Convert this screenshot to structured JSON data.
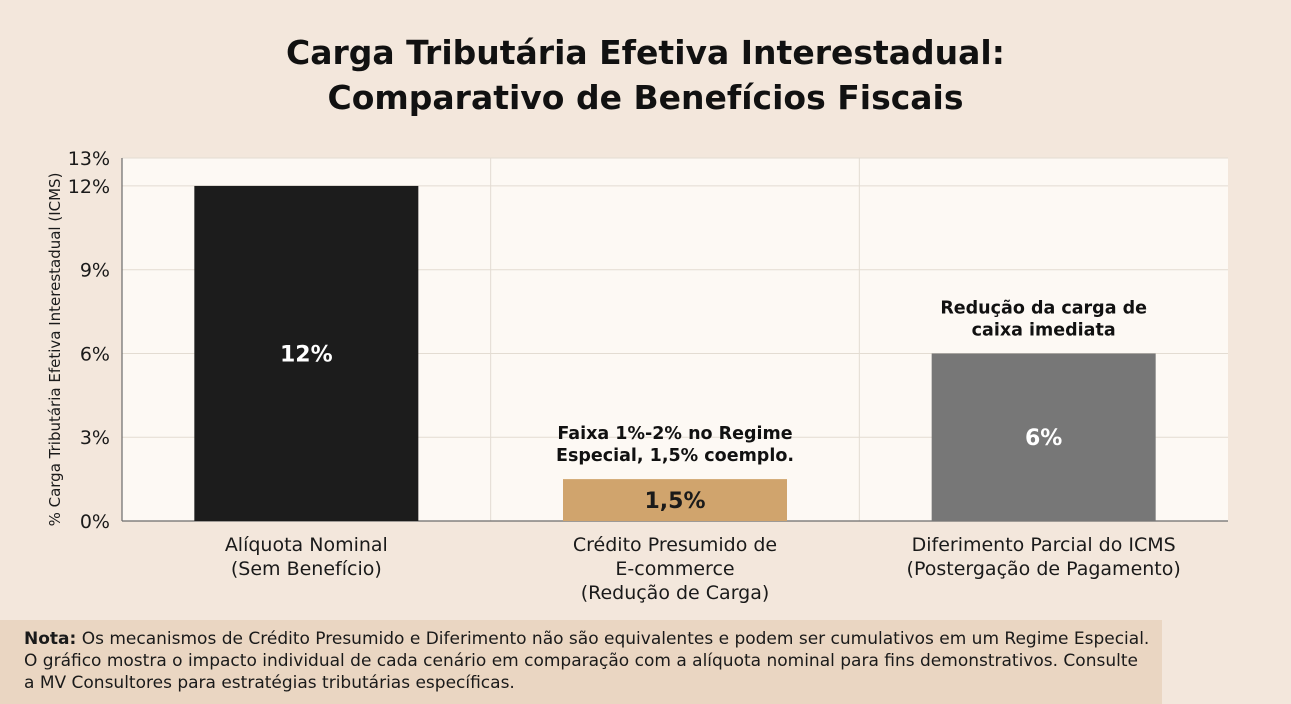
{
  "chart_data": {
    "type": "bar",
    "title": "Carga Tributária Efetiva Interestadual: Comparativo de Benefícios Fiscais",
    "title_lines": [
      "Carga Tributária Efetiva Interestadual:",
      "Comparativo de Benefícios Fiscais"
    ],
    "ylabel": "% Carga Tributária Efetiva Interestadual (ICMS)",
    "xlabel": "",
    "ylim": [
      0,
      13
    ],
    "yticks": [
      {
        "value": 0,
        "label": "0%"
      },
      {
        "value": 3,
        "label": "3%"
      },
      {
        "value": 6,
        "label": "6%"
      },
      {
        "value": 9,
        "label": "9%"
      },
      {
        "value": 12,
        "label": "12%"
      },
      {
        "value": 13,
        "label": "13%"
      }
    ],
    "grid": true,
    "categories": [
      {
        "lines": [
          "Alíquota Nominal",
          "(Sem Benefício)"
        ]
      },
      {
        "lines": [
          "Crédito Presumido de",
          "E-commerce",
          "(Redução de Carga)"
        ]
      },
      {
        "lines": [
          "Diferimento Parcial do ICMS",
          "(Postergação de Pagamento)"
        ]
      }
    ],
    "values": [
      12,
      1.5,
      6
    ],
    "value_labels": [
      "12%",
      "1,5%",
      "6%"
    ],
    "colors": [
      "#1c1c1c",
      "#d0a46d",
      "#777777"
    ],
    "value_label_colors": [
      "#ffffff",
      "#1a1a1a",
      "#ffffff"
    ],
    "annotations": [
      {
        "bar": 1,
        "lines": [
          "Faixa 1%-2% no Regime",
          "Especial, 1,5% coemplo."
        ]
      },
      {
        "bar": 2,
        "lines": [
          "Redução da carga de",
          "caixa imediata"
        ]
      }
    ]
  },
  "note": {
    "label": "Nota:",
    "text": " Os mecanismos de Crédito Presumido e Diferimento não são equivalentes e podem ser cumulativos em um Regime Especial. O gráfico mostra o impacto individual de cada cenário em comparação com a alíquota nominal para fins demonstrativos. Consulte a MV Consultores para estratégias tributárias específicas."
  }
}
